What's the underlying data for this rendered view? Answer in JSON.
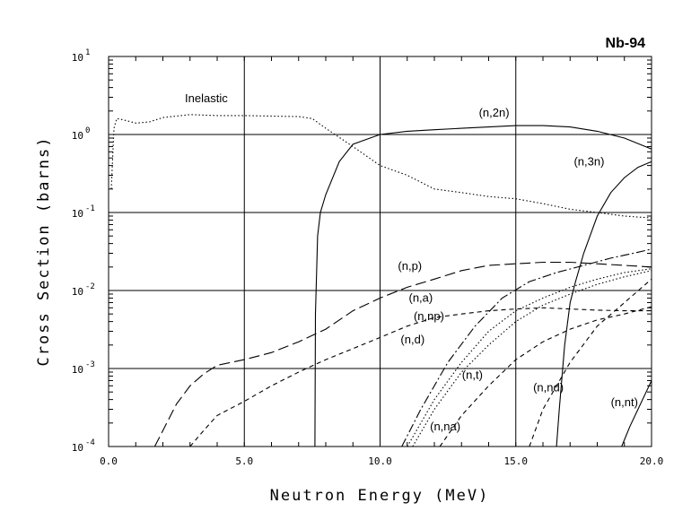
{
  "chart_data": {
    "type": "line",
    "title": "Nb-94",
    "xlabel": "Neutron Energy (MeV)",
    "ylabel": "Cross Section (barns)",
    "xlim": [
      0,
      20
    ],
    "ylim": [
      0.0001,
      10
    ],
    "yscale": "log",
    "grid": true,
    "x_ticks": [
      "0.0",
      "5.0",
      "10.0",
      "15.0",
      "20.0"
    ],
    "y_ticks": [
      {
        "base": "10",
        "exp": "1"
      },
      {
        "base": "10",
        "exp": "0"
      },
      {
        "base": "10",
        "exp": "-1"
      },
      {
        "base": "10",
        "exp": "-2"
      },
      {
        "base": "10",
        "exp": "-3"
      },
      {
        "base": "10",
        "exp": "-4"
      }
    ],
    "series": [
      {
        "name": "Inelastic",
        "style": "dotted",
        "points": [
          [
            0.1,
            0.2
          ],
          [
            0.2,
            1.2
          ],
          [
            0.3,
            1.6
          ],
          [
            0.5,
            1.55
          ],
          [
            1.0,
            1.4
          ],
          [
            1.5,
            1.45
          ],
          [
            2.0,
            1.65
          ],
          [
            3.0,
            1.8
          ],
          [
            4.0,
            1.75
          ],
          [
            5.0,
            1.75
          ],
          [
            6.0,
            1.72
          ],
          [
            7.0,
            1.7
          ],
          [
            7.5,
            1.6
          ],
          [
            8.0,
            1.2
          ],
          [
            9.0,
            0.7
          ],
          [
            10.0,
            0.4
          ],
          [
            11.0,
            0.3
          ],
          [
            12.0,
            0.2
          ],
          [
            13.0,
            0.18
          ],
          [
            14.0,
            0.16
          ],
          [
            15.0,
            0.15
          ],
          [
            16.0,
            0.13
          ],
          [
            17.0,
            0.11
          ],
          [
            18.0,
            0.1
          ],
          [
            19.0,
            0.09
          ],
          [
            20.0,
            0.085
          ]
        ]
      },
      {
        "name": "(n,2n)",
        "style": "solid",
        "points": [
          [
            7.6,
            0.0001
          ],
          [
            7.62,
            0.005
          ],
          [
            7.7,
            0.05
          ],
          [
            7.8,
            0.1
          ],
          [
            8.0,
            0.17
          ],
          [
            8.5,
            0.45
          ],
          [
            9.0,
            0.75
          ],
          [
            10.0,
            1.0
          ],
          [
            11.0,
            1.1
          ],
          [
            12.0,
            1.15
          ],
          [
            13.0,
            1.2
          ],
          [
            14.0,
            1.25
          ],
          [
            15.0,
            1.3
          ],
          [
            16.0,
            1.3
          ],
          [
            17.0,
            1.25
          ],
          [
            18.0,
            1.1
          ],
          [
            19.0,
            0.9
          ],
          [
            20.0,
            0.65
          ]
        ]
      },
      {
        "name": "(n,3n)",
        "style": "solid",
        "points": [
          [
            16.5,
            0.0001
          ],
          [
            16.6,
            0.0003
          ],
          [
            16.8,
            0.002
          ],
          [
            17.0,
            0.007
          ],
          [
            17.2,
            0.013
          ],
          [
            17.5,
            0.03
          ],
          [
            18.0,
            0.09
          ],
          [
            18.5,
            0.18
          ],
          [
            19.0,
            0.28
          ],
          [
            19.5,
            0.38
          ],
          [
            20.0,
            0.45
          ]
        ]
      },
      {
        "name": "(n,p)",
        "style": "long-dash",
        "points": [
          [
            1.7,
            0.0001
          ],
          [
            2.0,
            0.00016
          ],
          [
            2.5,
            0.00035
          ],
          [
            3.0,
            0.0006
          ],
          [
            3.5,
            0.00085
          ],
          [
            4.0,
            0.0011
          ],
          [
            5.0,
            0.0013
          ],
          [
            6.0,
            0.0016
          ],
          [
            7.0,
            0.0022
          ],
          [
            8.0,
            0.0032
          ],
          [
            9.0,
            0.0055
          ],
          [
            10.0,
            0.008
          ],
          [
            11.0,
            0.011
          ],
          [
            12.0,
            0.014
          ],
          [
            13.0,
            0.018
          ],
          [
            14.0,
            0.021
          ],
          [
            15.0,
            0.022
          ],
          [
            16.0,
            0.023
          ],
          [
            17.0,
            0.023
          ],
          [
            18.0,
            0.022
          ],
          [
            19.0,
            0.021
          ],
          [
            20.0,
            0.02
          ]
        ]
      },
      {
        "name": "(n,a)",
        "style": "dashed",
        "points": [
          [
            3.0,
            0.0001
          ],
          [
            3.5,
            0.00016
          ],
          [
            4.0,
            0.00025
          ],
          [
            5.0,
            0.00038
          ],
          [
            6.0,
            0.0006
          ],
          [
            7.0,
            0.0009
          ],
          [
            8.0,
            0.0013
          ],
          [
            9.0,
            0.0018
          ],
          [
            10.0,
            0.0025
          ],
          [
            11.0,
            0.0035
          ],
          [
            12.0,
            0.0045
          ],
          [
            13.0,
            0.005
          ],
          [
            14.0,
            0.0055
          ],
          [
            15.0,
            0.0058
          ],
          [
            16.0,
            0.006
          ],
          [
            17.0,
            0.0058
          ],
          [
            18.0,
            0.0056
          ],
          [
            19.0,
            0.0055
          ],
          [
            20.0,
            0.0055
          ]
        ]
      },
      {
        "name": "(n,np)",
        "style": "dotted",
        "points": [
          [
            11.0,
            0.0001
          ],
          [
            12.0,
            0.0004
          ],
          [
            13.0,
            0.0012
          ],
          [
            14.0,
            0.003
          ],
          [
            15.0,
            0.0055
          ],
          [
            16.0,
            0.008
          ],
          [
            17.0,
            0.011
          ],
          [
            18.0,
            0.014
          ],
          [
            19.0,
            0.017
          ],
          [
            20.0,
            0.019
          ]
        ]
      },
      {
        "name": "(n,d)",
        "style": "dash-dot",
        "points": [
          [
            10.8,
            0.0001
          ],
          [
            11.5,
            0.0003
          ],
          [
            12.5,
            0.0012
          ],
          [
            13.5,
            0.0035
          ],
          [
            14.5,
            0.008
          ],
          [
            15.5,
            0.013
          ],
          [
            16.5,
            0.017
          ],
          [
            17.5,
            0.021
          ],
          [
            18.5,
            0.026
          ],
          [
            19.5,
            0.031
          ],
          [
            20.0,
            0.034
          ]
        ]
      },
      {
        "name": "(n,t)",
        "style": "dashed",
        "points": [
          [
            12.2,
            0.0001
          ],
          [
            13.0,
            0.00025
          ],
          [
            14.0,
            0.0006
          ],
          [
            15.0,
            0.0013
          ],
          [
            16.0,
            0.0022
          ],
          [
            17.0,
            0.0032
          ],
          [
            18.0,
            0.0042
          ],
          [
            19.0,
            0.005
          ],
          [
            20.0,
            0.0062
          ]
        ]
      },
      {
        "name": "(n,na)",
        "style": "dotted",
        "points": [
          [
            11.2,
            0.0001
          ],
          [
            12.0,
            0.0003
          ],
          [
            13.0,
            0.0009
          ],
          [
            14.0,
            0.002
          ],
          [
            15.0,
            0.004
          ],
          [
            16.0,
            0.0065
          ],
          [
            17.0,
            0.009
          ],
          [
            18.0,
            0.012
          ],
          [
            19.0,
            0.015
          ],
          [
            20.0,
            0.018
          ]
        ]
      },
      {
        "name": "(n,nd)",
        "style": "dashed",
        "points": [
          [
            15.5,
            0.0001
          ],
          [
            16.0,
            0.0003
          ],
          [
            17.0,
            0.0012
          ],
          [
            18.0,
            0.0035
          ],
          [
            19.0,
            0.007
          ],
          [
            20.0,
            0.014
          ]
        ]
      },
      {
        "name": "(n,nt)",
        "style": "solid",
        "points": [
          [
            18.9,
            0.0001
          ],
          [
            19.2,
            0.00018
          ],
          [
            19.5,
            0.0003
          ],
          [
            19.8,
            0.0005
          ],
          [
            20.0,
            0.0007
          ]
        ]
      }
    ],
    "annotations": [
      {
        "text": "Inelastic",
        "x": 3.6,
        "y": 2.6
      },
      {
        "text": "(n,2n)",
        "x": 14.2,
        "y": 1.7
      },
      {
        "text": "(n,3n)",
        "x": 17.7,
        "y": 0.4
      },
      {
        "text": "(n,p)",
        "x": 11.1,
        "y": 0.0185
      },
      {
        "text": "(n,a)",
        "x": 11.5,
        "y": 0.0072
      },
      {
        "text": "(n,np)",
        "x": 11.8,
        "y": 0.0042
      },
      {
        "text": "(n,d)",
        "x": 11.2,
        "y": 0.0021
      },
      {
        "text": "(n,t)",
        "x": 13.4,
        "y": 0.00074
      },
      {
        "text": "(n,na)",
        "x": 12.4,
        "y": 0.00016
      },
      {
        "text": "(n,nd)",
        "x": 16.2,
        "y": 0.00051
      },
      {
        "text": "(n,nt)",
        "x": 19.0,
        "y": 0.00033
      }
    ]
  }
}
